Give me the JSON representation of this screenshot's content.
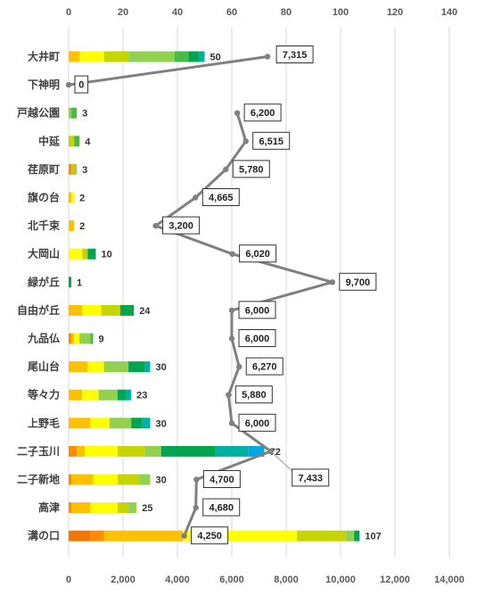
{
  "chart_data": {
    "type": "bar",
    "categories": [
      "大井町",
      "下神明",
      "戸越公園",
      "中延",
      "荏原町",
      "旗の台",
      "北千束",
      "大岡山",
      "緑が丘",
      "自由が丘",
      "九品仏",
      "尾山台",
      "等々力",
      "上野毛",
      "二子玉川",
      "二子新地",
      "高津",
      "溝の口"
    ],
    "bar_totals": [
      50,
      0,
      3,
      4,
      3,
      2,
      2,
      10,
      1,
      24,
      9,
      30,
      23,
      30,
      72,
      30,
      25,
      107
    ],
    "bar_segments": [
      [
        [
          4,
          "#ffc000"
        ],
        [
          9,
          "#ffff00"
        ],
        [
          9,
          "#c6d400"
        ],
        [
          17,
          "#92d050"
        ],
        [
          5,
          "#4cb848"
        ],
        [
          4,
          "#00a550"
        ],
        [
          2,
          "#00b0a0"
        ]
      ],
      [],
      [
        [
          1,
          "#92d050"
        ],
        [
          2,
          "#4cb848"
        ]
      ],
      [
        [
          2,
          "#c6d400"
        ],
        [
          2,
          "#4cb848"
        ]
      ],
      [
        [
          1,
          "#ff8c00"
        ],
        [
          1,
          "#e0c000"
        ],
        [
          1,
          "#92d050"
        ]
      ],
      [
        [
          1,
          "#ffc000"
        ],
        [
          1,
          "#ffff00"
        ]
      ],
      [
        [
          2,
          "#ffc000"
        ]
      ],
      [
        [
          5,
          "#ffff00"
        ],
        [
          2,
          "#c6d400"
        ],
        [
          3,
          "#00a550"
        ]
      ],
      [
        [
          1,
          "#00a550"
        ]
      ],
      [
        [
          1,
          "#ffc000"
        ],
        [
          4,
          "#ffc000"
        ],
        [
          7,
          "#ffff00"
        ],
        [
          7,
          "#c6d400"
        ],
        [
          5,
          "#00a550"
        ]
      ],
      [
        [
          1,
          "#ff8c00"
        ],
        [
          1,
          "#ffc000"
        ],
        [
          2,
          "#ffff00"
        ],
        [
          4,
          "#92d050"
        ],
        [
          1,
          "#4cb848"
        ]
      ],
      [
        [
          1,
          "#ffc000"
        ],
        [
          6,
          "#ffc000"
        ],
        [
          6,
          "#ffff00"
        ],
        [
          9,
          "#92d050"
        ],
        [
          6,
          "#00a550"
        ],
        [
          2,
          "#00b0a0"
        ]
      ],
      [
        [
          1,
          "#ffc000"
        ],
        [
          4,
          "#ffc000"
        ],
        [
          6,
          "#ffff00"
        ],
        [
          7,
          "#92d050"
        ],
        [
          3,
          "#00a550"
        ],
        [
          2,
          "#00b0a0"
        ]
      ],
      [
        [
          8,
          "#ffc000"
        ],
        [
          7,
          "#ffff00"
        ],
        [
          8,
          "#92d050"
        ],
        [
          4,
          "#00a550"
        ],
        [
          3,
          "#00b0a0"
        ]
      ],
      [
        [
          3,
          "#ff8c00"
        ],
        [
          3,
          "#ffc000"
        ],
        [
          12,
          "#ffff00"
        ],
        [
          10,
          "#c6d400"
        ],
        [
          6,
          "#92d050"
        ],
        [
          20,
          "#00a550"
        ],
        [
          12,
          "#00b0a0"
        ],
        [
          6,
          "#00a8e0"
        ]
      ],
      [
        [
          1,
          "#ff8c00"
        ],
        [
          8,
          "#ffc000"
        ],
        [
          9,
          "#ffff00"
        ],
        [
          8,
          "#c6d400"
        ],
        [
          4,
          "#92d050"
        ]
      ],
      [
        [
          1,
          "#ff8c00"
        ],
        [
          7,
          "#ffc000"
        ],
        [
          10,
          "#ffff00"
        ],
        [
          4,
          "#c6d400"
        ],
        [
          3,
          "#92d050"
        ]
      ],
      [
        [
          8,
          "#f07800"
        ],
        [
          5,
          "#ff8c00"
        ],
        [
          29,
          "#ffc000"
        ],
        [
          42,
          "#ffff00"
        ],
        [
          18,
          "#c6d400"
        ],
        [
          3,
          "#92d050"
        ],
        [
          2,
          "#00a550"
        ]
      ]
    ],
    "line_values": [
      7315,
      0,
      6200,
      6515,
      5780,
      4665,
      3200,
      6020,
      9700,
      6000,
      6000,
      6270,
      5880,
      6000,
      7433,
      4700,
      4680,
      4250
    ],
    "line_labels": [
      "7,315",
      "0",
      "6,200",
      "6,515",
      "5,780",
      "4,665",
      "3,200",
      "6,020",
      "9,700",
      "6,000",
      "6,000",
      "6,270",
      "5,880",
      "6,000",
      "7,433",
      "4,700",
      "4,680",
      "4,250"
    ],
    "top_axis": {
      "min": 0,
      "max": 140,
      "step": 20,
      "ticks": [
        "0",
        "20",
        "40",
        "60",
        "80",
        "100",
        "120",
        "140"
      ]
    },
    "bottom_axis": {
      "min": 0,
      "max": 14000,
      "step": 2000,
      "ticks": [
        "0",
        "2,000",
        "4,000",
        "6,000",
        "8,000",
        "10,000",
        "12,000",
        "14,000"
      ]
    },
    "line_color": "#808080",
    "grid": true
  }
}
